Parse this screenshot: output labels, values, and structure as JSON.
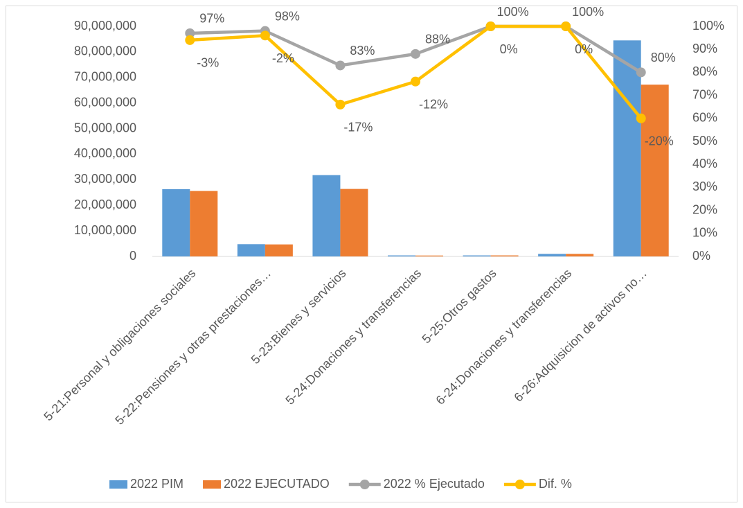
{
  "chart_data": {
    "type": "bar-line",
    "categories": [
      "5-21:Personal y obligaciones sociales",
      "5-22:Pensiones y otras prestaciones…",
      "5-23:Bienes y servicios",
      "5-24:Donaciones y transferencias",
      "5-25:Otros gastos",
      "6-24:Donaciones y transferencias",
      "6-26:Adquisicion de activos no…"
    ],
    "series": [
      {
        "name": "2022 PIM",
        "type": "bar",
        "color": "#5b9bd5",
        "values": [
          26300000,
          4800000,
          31800000,
          400000,
          400000,
          1000000,
          84500000
        ]
      },
      {
        "name": "2022 EJECUTADO",
        "type": "bar",
        "color": "#ed7d31",
        "values": [
          25600000,
          4700000,
          26400000,
          350000,
          400000,
          1000000,
          67200000
        ]
      },
      {
        "name": "2022 % Ejecutado",
        "type": "line",
        "axis": "y2",
        "color": "#a5a5a5",
        "values": [
          97,
          98,
          83,
          88,
          100,
          100,
          80
        ],
        "value_labels": [
          "97%",
          "98%",
          "83%",
          "88%",
          "100%",
          "100%",
          "80%"
        ]
      },
      {
        "name": "Dif. %",
        "type": "line",
        "axis": "y3",
        "color": "#ffc000",
        "values": [
          -3,
          -2,
          -17,
          -12,
          0,
          0,
          -20
        ],
        "value_labels": [
          "-3%",
          "-2%",
          "-17%",
          "-12%",
          "0%",
          "0%",
          "-20%"
        ]
      }
    ],
    "ylim": [
      0,
      90000000
    ],
    "yticks": [
      0,
      {
        "value": 10000000,
        "label": "10,000,000"
      },
      {
        "value": 20000000,
        "label": "20,000,000"
      },
      {
        "value": 30000000,
        "label": "30,000,000"
      },
      {
        "value": 40000000,
        "label": "40,000,000"
      },
      {
        "value": 50000000,
        "label": "50,000,000"
      },
      {
        "value": 60000000,
        "label": "60,000,000"
      },
      {
        "value": 70000000,
        "label": "70,000,000"
      },
      {
        "value": 80000000,
        "label": "80,000,000"
      },
      {
        "value": 90000000,
        "label": "90,000,000"
      }
    ],
    "y2lim": [
      0,
      100
    ],
    "y2ticks": [
      {
        "value": 0,
        "label": "0%"
      },
      {
        "value": 10,
        "label": "10%"
      },
      {
        "value": 20,
        "label": "20%"
      },
      {
        "value": 30,
        "label": "30%"
      },
      {
        "value": 40,
        "label": "40%"
      },
      {
        "value": 50,
        "label": "50%"
      },
      {
        "value": 60,
        "label": "60%"
      },
      {
        "value": 70,
        "label": "70%"
      },
      {
        "value": 80,
        "label": "80%"
      },
      {
        "value": 90,
        "label": "90%"
      },
      {
        "value": 100,
        "label": "100%"
      }
    ],
    "y3lim": [
      -50,
      0
    ],
    "legend": "bottom"
  }
}
